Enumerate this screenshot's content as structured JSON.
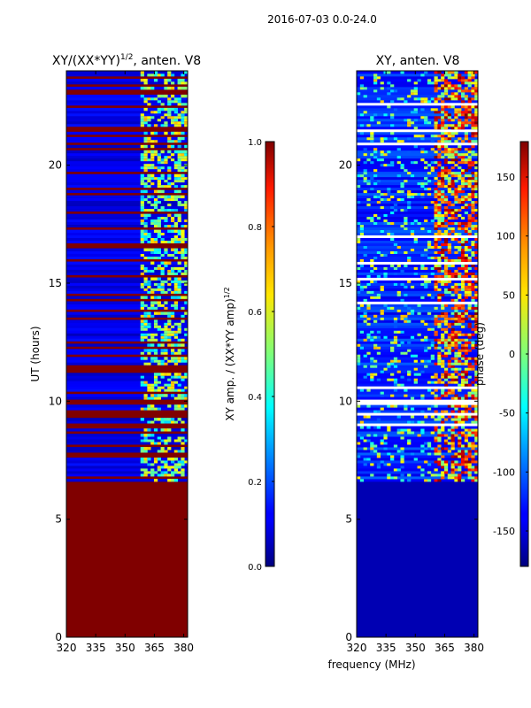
{
  "suptitle": "2016-07-03 0.0-24.0",
  "chart_data": [
    {
      "type": "heatmap",
      "title": "XY/(XX*YY)",
      "title_exponent": "1/2",
      "title_suffix": ", anten. V8",
      "xlabel": "",
      "ylabel": "UT (hours)",
      "xlim": [
        320,
        382
      ],
      "ylim": [
        0,
        24
      ],
      "xticks": [
        "320",
        "335",
        "350",
        "365",
        "380"
      ],
      "yticks": [
        "0",
        "5",
        "10",
        "15",
        "20"
      ],
      "data_start_ut": 6.6,
      "colorbar": {
        "label": "XY amp. / (XX*YY amp)",
        "label_exponent": "1/2",
        "range": [
          0.0,
          1.0
        ],
        "ticks": [
          "0.0",
          "0.2",
          "0.4",
          "0.6",
          "0.8",
          "1.0"
        ],
        "colormap": "jet"
      }
    },
    {
      "type": "heatmap",
      "title": "XY, anten. V8",
      "xlabel": "frequency (MHz)",
      "ylabel": "",
      "xlim": [
        320,
        382
      ],
      "ylim": [
        0,
        24
      ],
      "xticks": [
        "320",
        "335",
        "350",
        "365",
        "380"
      ],
      "yticks": [
        "0",
        "5",
        "10",
        "15",
        "20"
      ],
      "data_start_ut": 6.6,
      "colorbar": {
        "label": "phase (deg)",
        "range": [
          -180,
          180
        ],
        "ticks": [
          "-150",
          "-100",
          "-50",
          "0",
          "50",
          "100",
          "150"
        ],
        "colormap": "jet"
      }
    }
  ]
}
